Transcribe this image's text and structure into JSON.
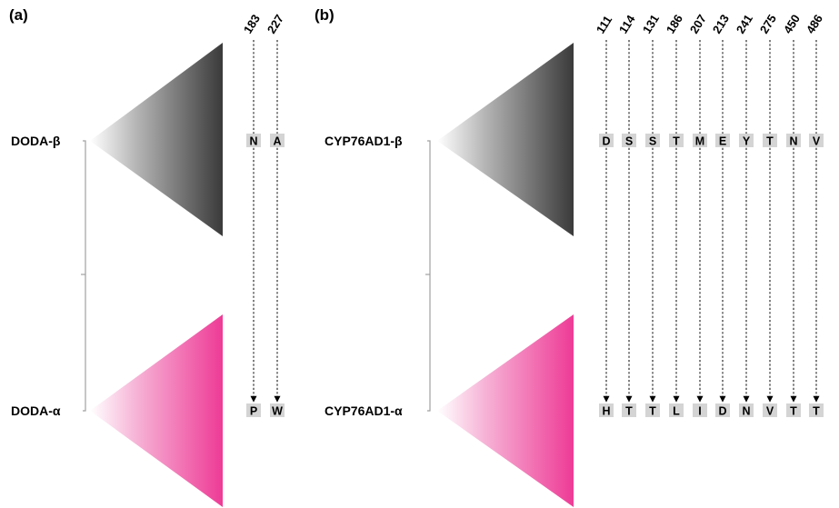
{
  "colors": {
    "beta_clade": "#3a3a3a",
    "alpha_clade": "#ee3b96",
    "tree": "#a0a0a0",
    "residue_box": "#d4d4d4"
  },
  "panels": [
    {
      "label": "(a)",
      "beta_name": "DODA-β",
      "alpha_name": "DODA-α",
      "positions": [
        "183",
        "227"
      ],
      "beta_residues": [
        "N",
        "A"
      ],
      "alpha_residues": [
        "P",
        "W"
      ]
    },
    {
      "label": "(b)",
      "beta_name": "CYP76AD1-β",
      "alpha_name": "CYP76AD1-α",
      "positions": [
        "111",
        "114",
        "131",
        "186",
        "207",
        "213",
        "241",
        "275",
        "450",
        "486"
      ],
      "beta_residues": [
        "D",
        "S",
        "S",
        "T",
        "M",
        "E",
        "Y",
        "T",
        "N",
        "V"
      ],
      "alpha_residues": [
        "H",
        "T",
        "T",
        "L",
        "I",
        "D",
        "N",
        "V",
        "T",
        "T"
      ]
    }
  ]
}
